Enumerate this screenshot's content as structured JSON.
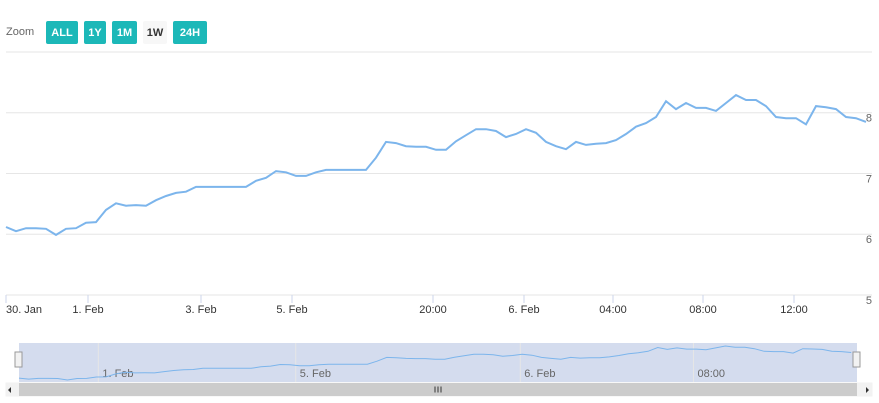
{
  "zoom": {
    "label": "Zoom",
    "buttons": [
      "ALL",
      "1Y",
      "1M",
      "1W",
      "24H"
    ],
    "selected": 3
  },
  "chart_data": {
    "type": "line",
    "color": "#7cb5ec",
    "values": [
      6.12,
      6.05,
      6.1,
      6.1,
      6.09,
      5.99,
      6.09,
      6.1,
      6.19,
      6.2,
      6.4,
      6.51,
      6.47,
      6.48,
      6.47,
      6.56,
      6.63,
      6.68,
      6.7,
      6.78,
      6.78,
      6.78,
      6.78,
      6.78,
      6.78,
      6.88,
      6.93,
      7.04,
      7.02,
      6.96,
      6.96,
      7.02,
      7.06,
      7.06,
      7.06,
      7.06,
      7.06,
      7.26,
      7.52,
      7.5,
      7.45,
      7.44,
      7.44,
      7.39,
      7.39,
      7.53,
      7.63,
      7.73,
      7.73,
      7.7,
      7.6,
      7.65,
      7.73,
      7.67,
      7.52,
      7.45,
      7.4,
      7.52,
      7.47,
      7.49,
      7.5,
      7.55,
      7.65,
      7.77,
      7.83,
      7.93,
      8.19,
      8.06,
      8.16,
      8.08,
      8.08,
      8.03,
      8.16,
      8.29,
      8.21,
      8.21,
      8.11,
      7.93,
      7.91,
      7.91,
      7.81,
      8.11,
      8.09,
      8.06,
      7.93,
      7.91,
      7.85
    ],
    "xlim": [
      0,
      86.6
    ],
    "xticks": [
      {
        "value": 0,
        "label": "30. Jan"
      },
      {
        "value": 8.2,
        "label": "1. Feb"
      },
      {
        "value": 19.5,
        "label": "3. Feb"
      },
      {
        "value": 28.6,
        "label": "5. Feb"
      },
      {
        "value": 42.7,
        "label": "20:00"
      },
      {
        "value": 51.8,
        "label": "6. Feb"
      },
      {
        "value": 60.7,
        "label": "04:00"
      },
      {
        "value": 69.7,
        "label": "08:00"
      },
      {
        "value": 78.8,
        "label": "12:00"
      }
    ],
    "ylim": [
      5,
      9
    ],
    "yticks": [
      5,
      6,
      7,
      8
    ],
    "grid": true,
    "navigator_xticks": [
      {
        "value": 8.2,
        "label": "1. Feb"
      },
      {
        "value": 28.6,
        "label": "5. Feb"
      },
      {
        "value": 51.8,
        "label": "6. Feb"
      },
      {
        "value": 69.7,
        "label": "08:00"
      }
    ]
  }
}
